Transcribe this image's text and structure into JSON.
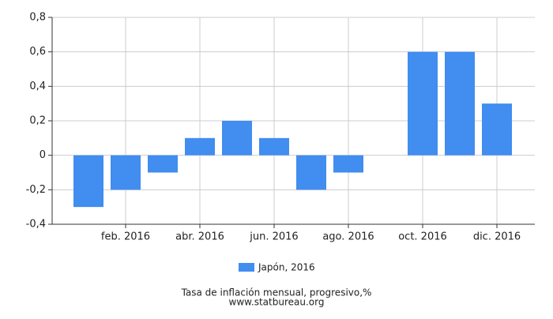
{
  "chart_data": {
    "type": "bar",
    "title": "Tasa de inflación mensual, progresivo,%",
    "subtitle": "www.statbureau.org",
    "categories": [
      null,
      "feb. 2016",
      null,
      "abr. 2016",
      null,
      "jun. 2016",
      null,
      "ago. 2016",
      null,
      "oct. 2016",
      null,
      "dic. 2016"
    ],
    "series": [
      {
        "name": "Japón, 2016",
        "color": "#418df0",
        "values": [
          -0.3,
          -0.2,
          -0.1,
          0.1,
          0.2,
          0.1,
          -0.2,
          -0.1,
          0,
          0.6,
          0.6,
          0.3
        ]
      }
    ],
    "ylim": [
      -0.4,
      0.8
    ],
    "yticks": [
      {
        "value": -0.4,
        "label": "-0,4"
      },
      {
        "value": -0.2,
        "label": "-0,2"
      },
      0,
      {
        "value": 0.2,
        "label": "0,2"
      },
      {
        "value": 0.4,
        "label": "0,4"
      },
      {
        "value": 0.6,
        "label": "0,6"
      },
      {
        "value": 0.8,
        "label": "0,8"
      }
    ],
    "grid": true
  }
}
